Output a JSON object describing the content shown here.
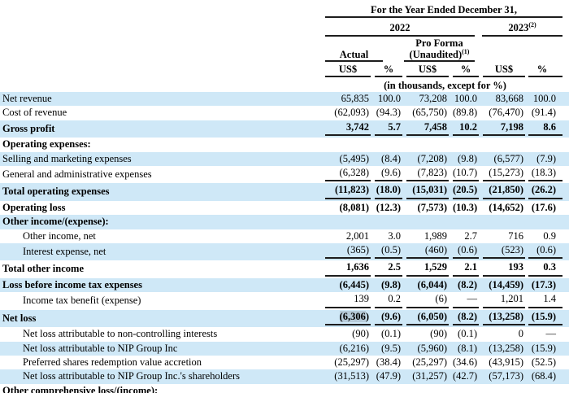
{
  "table": {
    "header": {
      "period_title": "For the Year Ended December 31,",
      "col_2022": "2022",
      "col_2023": "2023",
      "col_2023_footnote": "(2)",
      "actual": "Actual",
      "pro_forma_line1": "Pro Forma",
      "pro_forma_line2": "(Unaudited)",
      "pro_forma_footnote": "(1)",
      "usd": "US$",
      "pct": "%",
      "units_note": "(in thousands, except for %)"
    },
    "rows": [
      {
        "label": "Net revenue",
        "shaded": true,
        "values": [
          "65,835",
          "100.0",
          "73,208",
          "100.0",
          "83,668",
          "100.0"
        ]
      },
      {
        "label": "Cost of revenue",
        "values": [
          "(62,093)",
          "(94.3)",
          "(65,750)",
          "(89.8)",
          "(76,470)",
          "(91.4)"
        ]
      },
      {
        "label": "Gross profit",
        "bold": true,
        "shaded": true,
        "underline": true,
        "values": [
          "3,742",
          "5.7",
          "7,458",
          "10.2",
          "7,198",
          "8.6"
        ]
      },
      {
        "label": "Operating expenses:",
        "bold": true,
        "values": [
          "",
          "",
          "",
          "",
          "",
          ""
        ]
      },
      {
        "label": "Selling and marketing expenses",
        "shaded": true,
        "values": [
          "(5,495)",
          "(8.4)",
          "(7,208)",
          "(9.8)",
          "(6,577)",
          "(7.9)"
        ]
      },
      {
        "label": "General and administrative expenses",
        "underline": true,
        "values": [
          "(6,328)",
          "(9.6)",
          "(7,823)",
          "(10.7)",
          "(15,273)",
          "(18.3)"
        ]
      },
      {
        "label": "Total operating expenses",
        "bold": true,
        "shaded": true,
        "underline": true,
        "values": [
          "(11,823)",
          "(18.0)",
          "(15,031)",
          "(20.5)",
          "(21,850)",
          "(26.2)"
        ]
      },
      {
        "label": "Operating loss",
        "bold": true,
        "values": [
          "(8,081)",
          "(12.3)",
          "(7,573)",
          "(10.3)",
          "(14,652)",
          "(17.6)"
        ]
      },
      {
        "label": "Other income/(expense):",
        "bold": true,
        "shaded": true,
        "values": [
          "",
          "",
          "",
          "",
          "",
          ""
        ]
      },
      {
        "label": "Other income, net",
        "indent": true,
        "values": [
          "2,001",
          "3.0",
          "1,989",
          "2.7",
          "716",
          "0.9"
        ]
      },
      {
        "label": "Interest expense, net",
        "indent": true,
        "shaded": true,
        "underline": true,
        "values": [
          "(365)",
          "(0.5)",
          "(460)",
          "(0.6)",
          "(523)",
          "(0.6)"
        ]
      },
      {
        "label": "Total other income",
        "bold": true,
        "underline": true,
        "values": [
          "1,636",
          "2.5",
          "1,529",
          "2.1",
          "193",
          "0.3"
        ]
      },
      {
        "label": "Loss before income tax expenses",
        "bold": true,
        "shaded": true,
        "values": [
          "(6,445)",
          "(9.8)",
          "(6,044)",
          "(8.2)",
          "(14,459)",
          "(17.3)"
        ]
      },
      {
        "label": "Income tax benefit (expense)",
        "indent": true,
        "underline": true,
        "values": [
          "139",
          "0.2",
          "(6)",
          "—",
          "1,201",
          "1.4"
        ]
      },
      {
        "label": "Net loss",
        "bold": true,
        "shaded": true,
        "underline": true,
        "highlight": "(6,306",
        "highlight_rest": ")",
        "values": [
          "(6,306)",
          "(9.6)",
          "(6,050)",
          "(8.2)",
          "(13,258)",
          "(15.9)"
        ]
      },
      {
        "label": "Net loss attributable to non-controlling interests",
        "indent": true,
        "values": [
          "(90)",
          "(0.1)",
          "(90)",
          "(0.1)",
          "0",
          "—"
        ]
      },
      {
        "label": "Net loss attributable to NIP Group Inc",
        "indent": true,
        "shaded": true,
        "values": [
          "(6,216)",
          "(9.5)",
          "(5,960)",
          "(8.1)",
          "(13,258)",
          "(15.9)"
        ]
      },
      {
        "label": "Preferred shares redemption value accretion",
        "indent": true,
        "values": [
          "(25,297)",
          "(38.4)",
          "(25,297)",
          "(34.6)",
          "(43,915)",
          "(52.5)"
        ]
      },
      {
        "label": "Net loss attributable to NIP Group Inc.'s shareholders",
        "indent": true,
        "shaded": true,
        "values": [
          "(31,513)",
          "(47.9)",
          "(31,257)",
          "(42.7)",
          "(57,173)",
          "(68.4)"
        ]
      },
      {
        "label": "Other comprehensive loss/(income):",
        "bold": true,
        "partial": true,
        "values": [
          "",
          "",
          "",
          "",
          "",
          ""
        ]
      }
    ]
  }
}
